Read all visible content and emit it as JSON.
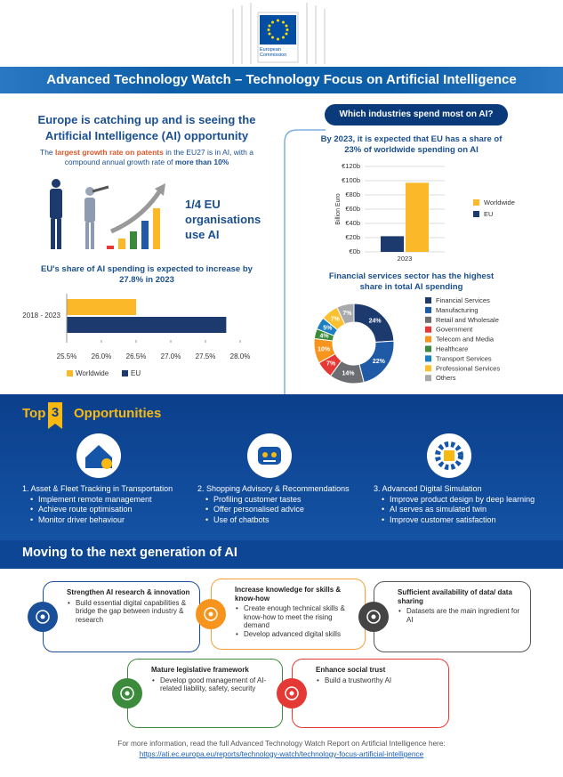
{
  "header": {
    "logo_text": "European Commission",
    "title": "Advanced Technology Watch – Technology Focus on Artificial Intelligence"
  },
  "left": {
    "heading": "Europe is catching up and is seeing the Artificial Intelligence (AI) opportunity",
    "subtitle": [
      "The ",
      "largest growth rate on patents",
      " in the EU27 is in AI, with a compound annual growth rate of ",
      "more than 10%"
    ],
    "stat": "1/4 EU organisations use AI"
  },
  "right": {
    "tab": "Which industries spend most on AI?"
  },
  "chart_data": [
    {
      "type": "barh",
      "title": "EU's share of AI spending is expected to increase by 27.8% in 2023",
      "categories": [
        "2018 - 2023"
      ],
      "series": [
        {
          "name": "Worldwide",
          "color": "#fbb829",
          "values": [
            26.5
          ]
        },
        {
          "name": "EU",
          "color": "#1d3a6e",
          "values": [
            27.8
          ]
        }
      ],
      "xlim": [
        25.5,
        28.0
      ],
      "xticks": [
        {
          "value": 25.5,
          "label": "25.5%"
        },
        {
          "value": 26.0,
          "label": "26.0%"
        },
        {
          "value": 26.5,
          "label": "26.5%"
        },
        {
          "value": 27.0,
          "label": "27.0%"
        },
        {
          "value": 27.5,
          "label": "27.5%"
        },
        {
          "value": 28.0,
          "label": "28.0%"
        }
      ],
      "legend": "bottom"
    },
    {
      "type": "bar",
      "title": "By 2023, it is expected that EU has a share of 23% of worldwide spending on AI",
      "categories": [
        "2023"
      ],
      "ylabel": "Billion Euro",
      "series": [
        {
          "name": "Worldwide",
          "color": "#fbb829",
          "values": [
            97
          ]
        },
        {
          "name": "EU",
          "color": "#1d3a6e",
          "values": [
            22
          ]
        }
      ],
      "ylim": [
        0,
        120
      ],
      "yticks": [
        {
          "value": 0,
          "label": "€0b"
        },
        {
          "value": 20,
          "label": "€20b"
        },
        {
          "value": 40,
          "label": "€40b"
        },
        {
          "value": 60,
          "label": "€60b"
        },
        {
          "value": 80,
          "label": "€80b"
        },
        {
          "value": 100,
          "label": "€100b"
        },
        {
          "value": 120,
          "label": "€120b"
        }
      ],
      "grid": true,
      "legend": "right"
    },
    {
      "type": "pie",
      "title": "Financial services sector has the highest share in total AI spending",
      "categories": [
        "Financial Services",
        "Manufacturing",
        "Retail and Wholesale",
        "Government",
        "Telecom and Media",
        "Healthcare",
        "Transport Services",
        "Professional Services",
        "Others"
      ],
      "values": [
        24,
        22,
        14,
        7,
        10,
        4,
        5,
        7,
        7
      ],
      "value_labels": [
        "24%",
        "22%",
        "14%",
        "7%",
        "10%",
        "4%",
        "5%",
        "7%",
        "7%"
      ],
      "colors": [
        "#1d3a6e",
        "#1f5aa6",
        "#6d6e71",
        "#e53935",
        "#f7941d",
        "#3c8a3c",
        "#1b7fc1",
        "#fbc02d",
        "#a7a9ac"
      ],
      "donut": true,
      "legend": "right"
    }
  ],
  "opportunities": {
    "title": [
      "Top",
      "3",
      "Opportunities"
    ],
    "items": [
      {
        "title": "1. Asset & Fleet Tracking in Transportation",
        "bullets": [
          "Implement remote management",
          "Achieve route optimisation",
          "Monitor driver behaviour"
        ]
      },
      {
        "title": "2. Shopping Advisory & Recommendations",
        "bullets": [
          "Profiling customer tastes",
          "Offer personalised advice",
          "Use of chatbots"
        ]
      },
      {
        "title": "3. Advanced Digital Simulation",
        "bullets": [
          "Improve product design by deep learning",
          "AI serves as simulated twin",
          "Improve customer satisfaction"
        ]
      }
    ]
  },
  "next_gen": {
    "title": "Moving to the next generation of AI",
    "boxes": [
      {
        "title": "Strengthen AI research & innovation",
        "bullets": [
          "Build essential digital capabilities & bridge the gap between industry & research"
        ]
      },
      {
        "title": "Increase knowledge for skills & know-how",
        "bullets": [
          "Create enough technical skills & know-how to meet the rising demand",
          "Develop advanced digital skills"
        ]
      },
      {
        "title": "Sufficient availability of data/ data sharing",
        "bullets": [
          "Datasets are the main ingredient for AI"
        ]
      },
      {
        "title": "Mature legislative framework",
        "bullets": [
          "Develop good management of AI-related liability, safety, security"
        ]
      },
      {
        "title": "Enhance social trust",
        "bullets": [
          "Build a trustworthy AI"
        ]
      }
    ]
  },
  "footer": {
    "text": "For more information, read the full Advanced Technology Watch Report on Artificial Intelligence here:",
    "link": "https://ati.ec.europa.eu/reports/technology-watch/technology-focus-artificial-intelligence"
  }
}
